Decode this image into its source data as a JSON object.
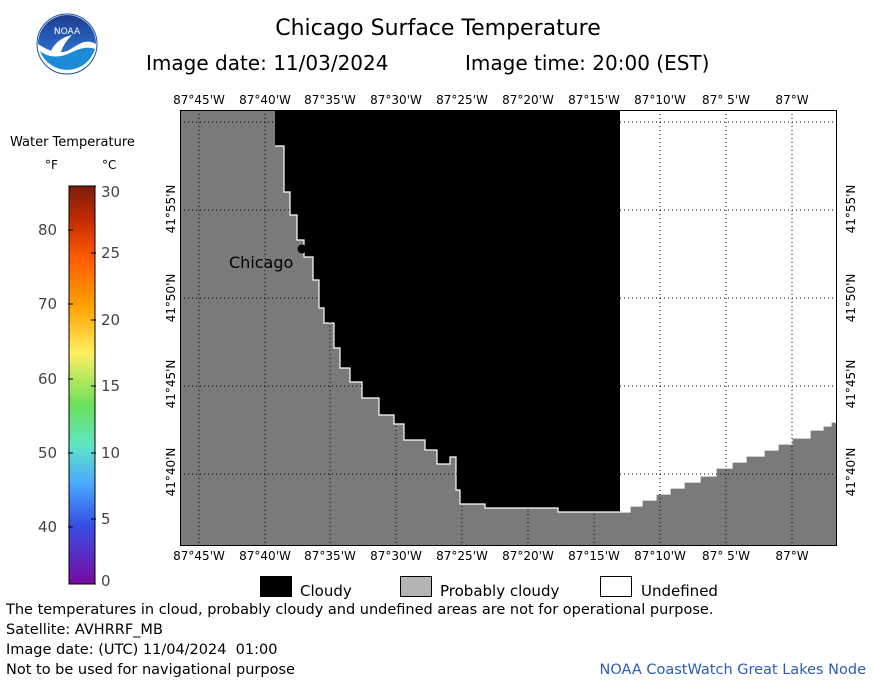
{
  "header": {
    "title": "Chicago Surface Temperature",
    "image_date": "Image date: 11/03/2024",
    "image_time": "Image time: 20:00 (EST)"
  },
  "logo": {
    "text": "NOAA",
    "icon": "noaa-logo-icon"
  },
  "map": {
    "longitude_labels": [
      "87°45'W",
      "87°40'W",
      "87°35'W",
      "87°30'W",
      "87°25'W",
      "87°20'W",
      "87°15'W",
      "87°10'W",
      "87° 5'W",
      "87°W"
    ],
    "latitude_labels": [
      "41°55'N",
      "41°50'N",
      "41°45'N",
      "41°40'N"
    ],
    "city_label": "Chicago",
    "colors": {
      "land": "#7a7a7a",
      "cloudy": "#000000",
      "undefined": "#ffffff",
      "grid": "#000000"
    }
  },
  "colorbar": {
    "title": "Water Temperature",
    "unit_f": "°F",
    "unit_c": "°C",
    "f_ticks": [
      "80",
      "70",
      "60",
      "50",
      "40"
    ],
    "c_ticks": [
      "30",
      "25",
      "20",
      "15",
      "10",
      "5",
      "0"
    ]
  },
  "legend": {
    "items": [
      {
        "label": "Cloudy",
        "color": "#000000"
      },
      {
        "label": "Probably cloudy",
        "color": "#b4b4b4"
      },
      {
        "label": "Undefined",
        "color": "#ffffff"
      }
    ]
  },
  "footer": {
    "note": "The temperatures in cloud, probably cloudy and undefined areas are not for operational purpose.",
    "satellite": "Satellite: AVHRRF_MB",
    "utc_date": "Image date: (UTC) 11/04/2024  01:00",
    "nav_warning": "Not to be used for navigational purpose",
    "credit": "NOAA CoastWatch Great Lakes Node"
  }
}
